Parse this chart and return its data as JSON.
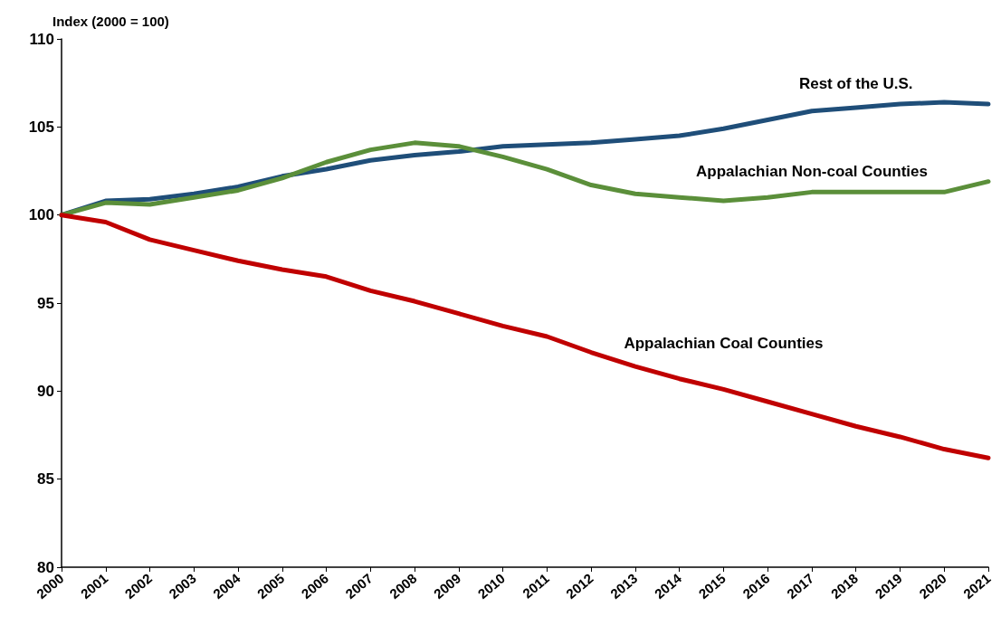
{
  "chart_data": {
    "type": "line",
    "ylabel": "Index (2000 = 100)",
    "categories": [
      "2000",
      "2001",
      "2002",
      "2003",
      "2004",
      "2005",
      "2006",
      "2007",
      "2008",
      "2009",
      "2010",
      "2011",
      "2012",
      "2013",
      "2014",
      "2015",
      "2016",
      "2017",
      "2018",
      "2019",
      "2020",
      "2021"
    ],
    "series": [
      {
        "name": "Rest of the U.S.",
        "color": "#1f4e79",
        "values": [
          100,
          100.8,
          100.9,
          101.2,
          101.6,
          102.2,
          102.6,
          103.1,
          103.4,
          103.6,
          103.9,
          104.0,
          104.1,
          104.3,
          104.5,
          104.9,
          105.4,
          105.9,
          106.1,
          106.3,
          106.4,
          106.3
        ]
      },
      {
        "name": "Appalachian Non-coal Counties",
        "color": "#5b8f3a",
        "values": [
          100,
          100.7,
          100.6,
          101.0,
          101.4,
          102.1,
          103.0,
          103.7,
          104.1,
          103.9,
          103.3,
          102.6,
          101.7,
          101.2,
          101.0,
          100.8,
          101.0,
          101.3,
          101.3,
          101.3,
          101.3,
          101.9
        ]
      },
      {
        "name": "Appalachian Coal Counties",
        "color": "#c00000",
        "values": [
          100,
          99.6,
          98.6,
          98.0,
          97.4,
          96.9,
          96.5,
          95.7,
          95.1,
          94.4,
          93.7,
          93.1,
          92.2,
          91.4,
          90.7,
          90.1,
          89.4,
          88.7,
          88.0,
          87.4,
          86.7,
          86.2
        ]
      }
    ],
    "ylim": [
      80,
      110
    ],
    "yticks": [
      80,
      85,
      90,
      95,
      100,
      105,
      110
    ],
    "grid": false,
    "legend": false,
    "marker": "none",
    "line_style": "solid"
  }
}
